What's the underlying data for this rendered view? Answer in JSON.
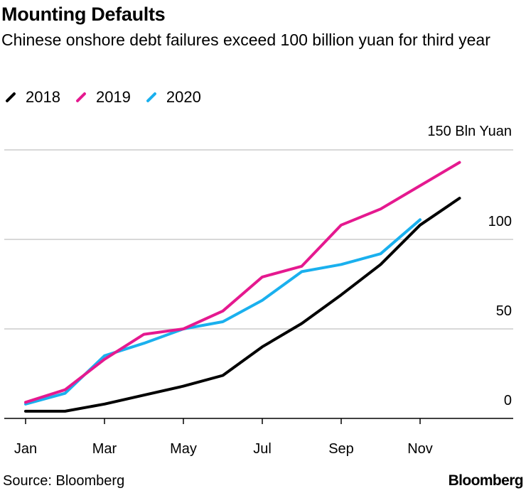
{
  "title": "Mounting Defaults",
  "subtitle": "Chinese onshore debt failures exceed 100 billion yuan for third year",
  "source": "Source: Bloomberg",
  "logo": "Bloomberg",
  "y_unit_label": "150 Bln Yuan",
  "chart_data": {
    "type": "line",
    "x_tick_labels": [
      "Jan",
      "Mar",
      "May",
      "Jul",
      "Sep",
      "Nov"
    ],
    "y_tick_labels": [
      "0",
      "50",
      "100"
    ],
    "ylim": [
      0,
      150
    ],
    "grid": true,
    "legend_position": "top-left",
    "series": [
      {
        "name": "2018",
        "color": "#000000",
        "points": [
          [
            1,
            4
          ],
          [
            2,
            4
          ],
          [
            3,
            8
          ],
          [
            4,
            13
          ],
          [
            5,
            18
          ],
          [
            6,
            24
          ],
          [
            7,
            40
          ],
          [
            8,
            53
          ],
          [
            9,
            69
          ],
          [
            10,
            86
          ],
          [
            11,
            108
          ],
          [
            12,
            123
          ]
        ]
      },
      {
        "name": "2019",
        "color": "#e5198f",
        "points": [
          [
            1,
            9
          ],
          [
            2,
            16
          ],
          [
            3,
            33
          ],
          [
            4,
            47
          ],
          [
            5,
            50
          ],
          [
            6,
            60
          ],
          [
            7,
            79
          ],
          [
            8,
            85
          ],
          [
            9,
            108
          ],
          [
            10,
            117
          ],
          [
            11,
            130
          ],
          [
            12,
            143
          ]
        ]
      },
      {
        "name": "2020",
        "color": "#1ab0ee",
        "points": [
          [
            1,
            8
          ],
          [
            2,
            14
          ],
          [
            3,
            35
          ],
          [
            4,
            42
          ],
          [
            5,
            50
          ],
          [
            6,
            54
          ],
          [
            7,
            66
          ],
          [
            8,
            82
          ],
          [
            9,
            86
          ],
          [
            10,
            92
          ],
          [
            11,
            111
          ]
        ]
      }
    ]
  }
}
